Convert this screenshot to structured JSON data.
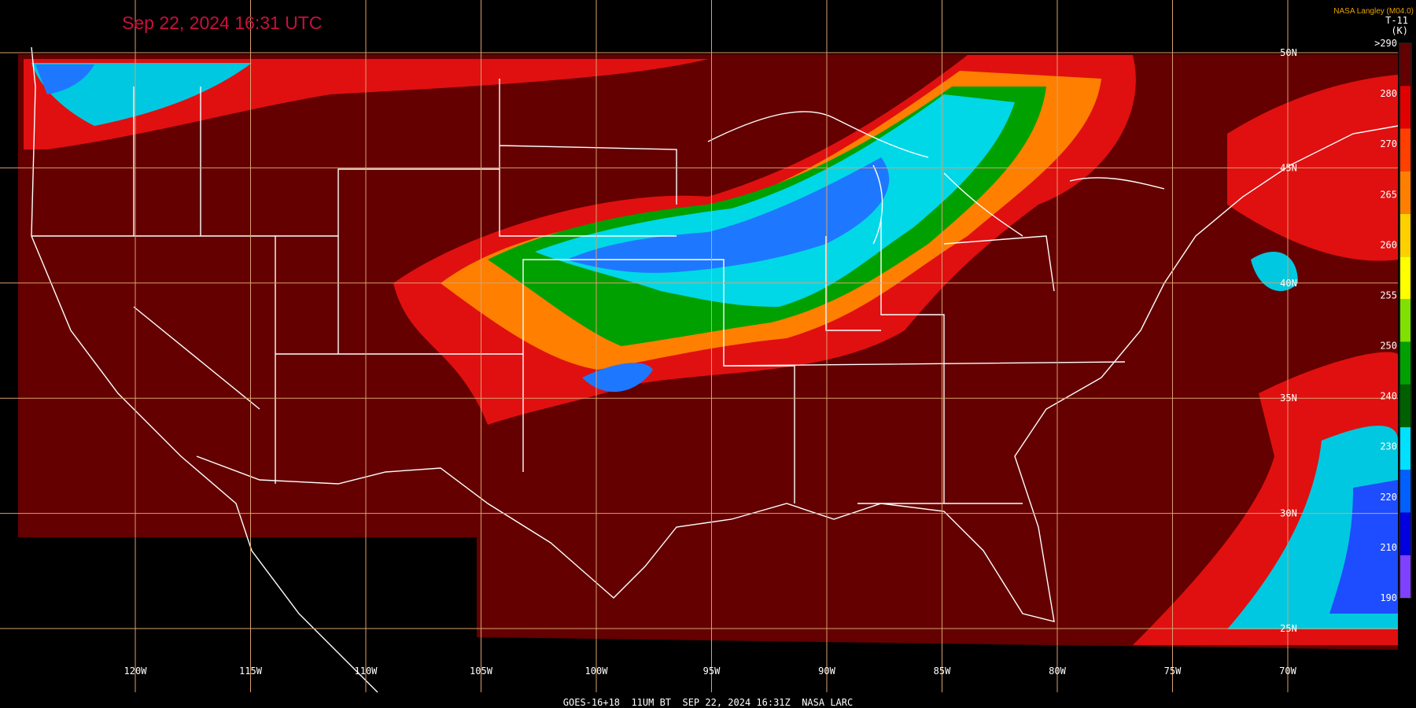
{
  "header": {
    "title": "Sep 22, 2024 16:31 UTC",
    "credit": "NASA Langley (M04.0)"
  },
  "colorbar": {
    "title": "T-11",
    "unit": "(K)",
    "labels": [
      ">290",
      "280",
      "270",
      "265",
      "260",
      "255",
      "250",
      "240",
      "230",
      "220",
      "210",
      "190"
    ]
  },
  "longitude_labels": [
    "120W",
    "115W",
    "110W",
    "105W",
    "100W",
    "95W",
    "90W",
    "85W",
    "80W",
    "75W",
    "70W"
  ],
  "latitude_labels": [
    "50N",
    "45N",
    "40N",
    "35N",
    "30N",
    "25N"
  ],
  "footer": "GOES-16+18  11UM BT  SEP 22, 2024 16:31Z  NASA LARC"
}
